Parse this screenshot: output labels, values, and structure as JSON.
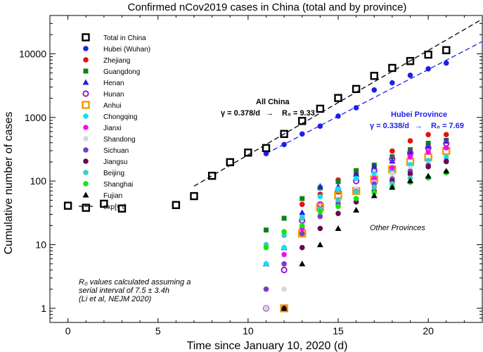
{
  "chart_data": {
    "type": "scatter",
    "title": "Confirmed nCov2019 cases in China (total and by province)",
    "xlabel": "Time since January 10, 2020 (d)",
    "ylabel": "Cumulative number of cases",
    "yscale": "log",
    "xlim": [
      -1,
      23
    ],
    "ylim": [
      0.6,
      40000
    ],
    "x_ticks": [
      0,
      5,
      10,
      15,
      20
    ],
    "y_ticks": [
      1,
      10,
      100,
      1000,
      10000
    ],
    "y_tick_labels": [
      "1",
      "10",
      "100",
      "1000",
      "10000"
    ],
    "colors": {
      "total": "#000000",
      "hubei": "#1f1fe8",
      "zhejiang": "#e81010",
      "guangdong": "#12801a",
      "henan": "#1f1fe8",
      "hunan": "#9a1ad0",
      "anhui": "#f09a00",
      "chongqing": "#10e0f0",
      "jianxi": "#f010f0",
      "shandong": "#d8d8d8",
      "sichuan": "#7a3cc8",
      "jiangsu": "#6a0a4a",
      "beijing": "#40c8c8",
      "shanghai": "#10e810",
      "fujian": "#000000"
    },
    "series": [
      {
        "name": "Total in China",
        "key": "total",
        "marker": "hollow-square",
        "x": [
          0,
          1,
          2,
          3,
          6,
          7,
          8,
          9,
          10,
          11,
          12,
          13,
          14,
          15,
          16,
          17,
          18,
          19,
          20,
          21
        ],
        "y": [
          41,
          38,
          44,
          37,
          42,
          58,
          121,
          198,
          280,
          330,
          550,
          880,
          1370,
          2020,
          2800,
          4500,
          6000,
          7700,
          9700,
          11400
        ]
      },
      {
        "name": "Hubei (Wuhan)",
        "key": "hubei",
        "marker": "circle",
        "x": [
          11,
          12,
          13,
          14,
          15,
          16,
          17,
          18,
          19,
          20,
          21
        ],
        "y": [
          270,
          375,
          550,
          730,
          1050,
          1420,
          2700,
          3500,
          4600,
          5800,
          7150
        ]
      },
      {
        "name": "Zhejiang",
        "key": "zhejiang",
        "marker": "circle",
        "x": [
          12,
          13,
          14,
          15,
          16,
          17,
          18,
          19,
          20,
          21
        ],
        "y": [
          1,
          43,
          62,
          104,
          128,
          173,
          296,
          428,
          537,
          538
        ]
      },
      {
        "name": "Guangdong",
        "key": "guangdong",
        "marker": "square",
        "x": [
          11,
          12,
          13,
          14,
          15,
          16,
          17,
          18,
          19,
          20,
          21
        ],
        "y": [
          17,
          26,
          53,
          78,
          98,
          146,
          178,
          241,
          311,
          393,
          436
        ]
      },
      {
        "name": "Henan",
        "key": "henan",
        "marker": "triangle",
        "x": [
          11,
          12,
          13,
          14,
          15,
          16,
          17,
          18,
          19,
          20,
          21
        ],
        "y": [
          5,
          9,
          32,
          83,
          82,
          128,
          168,
          206,
          278,
          352,
          422
        ]
      },
      {
        "name": "Hunan",
        "key": "hunan",
        "marker": "hollow-circle",
        "x": [
          11,
          12,
          13,
          14,
          15,
          16,
          17,
          18,
          19,
          20,
          21
        ],
        "y": [
          1,
          4,
          24,
          43,
          69,
          100,
          143,
          221,
          277,
          332,
          389
        ]
      },
      {
        "name": "Anhui",
        "key": "anhui",
        "marker": "hollow-square",
        "x": [
          12,
          13,
          14,
          15,
          16,
          17,
          18,
          19,
          20,
          21
        ],
        "y": [
          1,
          15,
          39,
          60,
          70,
          106,
          152,
          200,
          237,
          297
        ]
      },
      {
        "name": "Chongqing",
        "key": "chongqing",
        "marker": "circle",
        "x": [
          11,
          12,
          13,
          14,
          15,
          16,
          17,
          18,
          19,
          20,
          21
        ],
        "y": [
          5,
          9,
          27,
          57,
          75,
          110,
          132,
          147,
          182,
          211,
          238
        ]
      },
      {
        "name": "Jianxi",
        "key": "jianxi",
        "marker": "circle",
        "x": [
          11,
          12,
          13,
          14,
          15,
          16,
          17,
          18,
          19,
          20,
          21
        ],
        "y": [
          2,
          7,
          18,
          36,
          48,
          72,
          109,
          162,
          240,
          286,
          333
        ]
      },
      {
        "name": "Shandong",
        "key": "shandong",
        "marker": "circle",
        "x": [
          11,
          12,
          13,
          14,
          15,
          16,
          17,
          18,
          19,
          20,
          21
        ],
        "y": [
          1,
          2,
          15,
          27,
          46,
          75,
          95,
          130,
          158,
          184,
          206
        ]
      },
      {
        "name": "Sichuan",
        "key": "sichuan",
        "marker": "circle",
        "x": [
          11,
          12,
          13,
          14,
          15,
          16,
          17,
          18,
          19,
          20,
          21
        ],
        "y": [
          2,
          5,
          15,
          28,
          44,
          69,
          90,
          108,
          142,
          177,
          207
        ]
      },
      {
        "name": "Jiangsu",
        "key": "jiangsu",
        "marker": "circle",
        "x": [
          12,
          13,
          14,
          15,
          16,
          17,
          18,
          19,
          20,
          21
        ],
        "y": [
          1,
          9,
          18,
          31,
          47,
          70,
          99,
          129,
          168,
          202
        ]
      },
      {
        "name": "Beijing",
        "key": "beijing",
        "marker": "circle",
        "x": [
          11,
          12,
          13,
          14,
          15,
          16,
          17,
          18,
          19,
          20,
          21
        ],
        "y": [
          10,
          14,
          26,
          36,
          51,
          68,
          80,
          91,
          111,
          114,
          139
        ]
      },
      {
        "name": "Shanghai",
        "key": "shanghai",
        "marker": "circle",
        "x": [
          11,
          12,
          13,
          14,
          15,
          16,
          17,
          18,
          19,
          20,
          21
        ],
        "y": [
          9,
          16,
          20,
          33,
          40,
          53,
          66,
          80,
          96,
          112,
          135
        ]
      },
      {
        "name": "Fujian",
        "key": "fujian",
        "marker": "triangle",
        "x": [
          12,
          13,
          14,
          15,
          16,
          17,
          18,
          19,
          20,
          21
        ],
        "y": [
          1,
          5,
          10,
          18,
          35,
          59,
          80,
          101,
          120,
          144
        ]
      }
    ],
    "legend_fit_label": "exp[γ t]",
    "fits": [
      {
        "name": "All China",
        "color": "#000000",
        "gamma": 0.378,
        "x_start": 7,
        "x_end": 23,
        "y_at_x_start": 83
      },
      {
        "name": "Hubei Province",
        "color": "#1f1fe8",
        "gamma": 0.338,
        "x_start": 11,
        "x_end": 23,
        "y_at_x_start": 270
      }
    ],
    "annotations": {
      "all_china_title": "All China",
      "all_china_gamma": "γ = 0.378/d",
      "all_china_r0": "R₀ = 9.33",
      "hubei_title": "Hubei Province",
      "hubei_gamma": "γ = 0.338/d",
      "hubei_r0": "R₀ = 7.69",
      "arrow": "→",
      "other_provinces": "Other Provinces",
      "note_line1": "R₀ values calculated assuming a",
      "note_line2": "serial interval of 7.5 ± 3.4h",
      "note_line3": "(Li et al, NEJM 2020)"
    }
  }
}
